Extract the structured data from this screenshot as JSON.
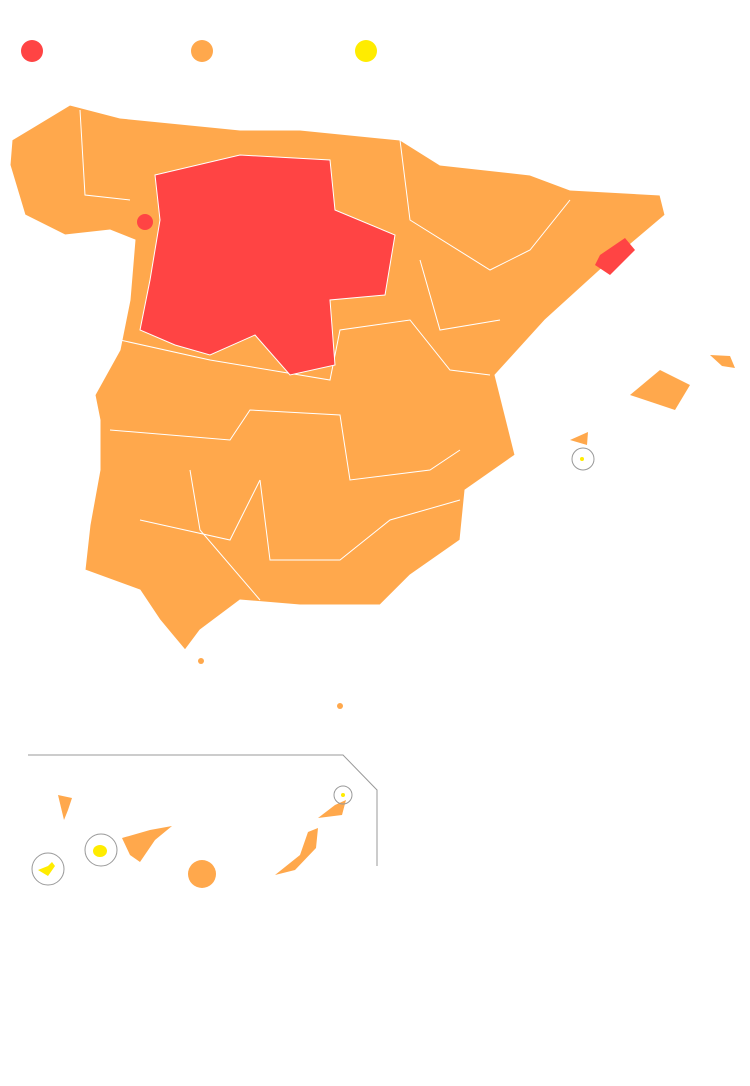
{
  "legend": {
    "items": [
      {
        "color": "#ff4444"
      },
      {
        "color": "#ffa84c"
      },
      {
        "color": "#ffec00"
      }
    ]
  },
  "map": {
    "colors": {
      "high": "#ff4444",
      "medium": "#ffa84c",
      "low": "#ffec00",
      "border": "#ffffff",
      "frame": "#999999"
    }
  }
}
